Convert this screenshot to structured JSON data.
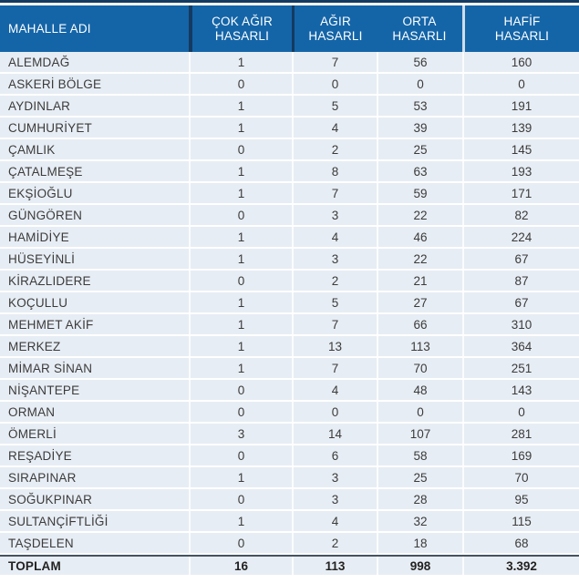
{
  "table": {
    "header": [
      {
        "line1": "MAHALLE ADI",
        "line2": ""
      },
      {
        "line1": "ÇOK AĞIR",
        "line2": "HASARLI"
      },
      {
        "line1": "AĞIR",
        "line2": "HASARLI"
      },
      {
        "line1": "ORTA",
        "line2": "HASARLI"
      },
      {
        "line1": "HAFİF",
        "line2": "HASARLI"
      }
    ],
    "rows": [
      {
        "name": "ALEMDAĞ",
        "values": [
          "1",
          "7",
          "56",
          "160"
        ]
      },
      {
        "name": "ASKERİ BÖLGE",
        "values": [
          "0",
          "0",
          "0",
          "0"
        ]
      },
      {
        "name": "AYDINLAR",
        "values": [
          "1",
          "5",
          "53",
          "191"
        ]
      },
      {
        "name": "CUMHURİYET",
        "values": [
          "1",
          "4",
          "39",
          "139"
        ]
      },
      {
        "name": "ÇAMLIK",
        "values": [
          "0",
          "2",
          "25",
          "145"
        ]
      },
      {
        "name": "ÇATALMEŞE",
        "values": [
          "1",
          "8",
          "63",
          "193"
        ]
      },
      {
        "name": "EKŞİOĞLU",
        "values": [
          "1",
          "7",
          "59",
          "171"
        ]
      },
      {
        "name": "GÜNGÖREN",
        "values": [
          "0",
          "3",
          "22",
          "82"
        ]
      },
      {
        "name": "HAMİDİYE",
        "values": [
          "1",
          "4",
          "46",
          "224"
        ]
      },
      {
        "name": "HÜSEYİNLİ",
        "values": [
          "1",
          "3",
          "22",
          "67"
        ]
      },
      {
        "name": "KİRAZLIDERE",
        "values": [
          "0",
          "2",
          "21",
          "87"
        ]
      },
      {
        "name": "KOÇULLU",
        "values": [
          "1",
          "5",
          "27",
          "67"
        ]
      },
      {
        "name": "MEHMET AKİF",
        "values": [
          "1",
          "7",
          "66",
          "310"
        ]
      },
      {
        "name": "MERKEZ",
        "values": [
          "1",
          "13",
          "113",
          "364"
        ]
      },
      {
        "name": "MİMAR SİNAN",
        "values": [
          "1",
          "7",
          "70",
          "251"
        ]
      },
      {
        "name": "NİŞANTEPE",
        "values": [
          "0",
          "4",
          "48",
          "143"
        ]
      },
      {
        "name": "ORMAN",
        "values": [
          "0",
          "0",
          "0",
          "0"
        ]
      },
      {
        "name": "ÖMERLİ",
        "values": [
          "3",
          "14",
          "107",
          "281"
        ]
      },
      {
        "name": "REŞADİYE",
        "values": [
          "0",
          "6",
          "58",
          "169"
        ]
      },
      {
        "name": "SIRAPINAR",
        "values": [
          "1",
          "3",
          "25",
          "70"
        ]
      },
      {
        "name": "SOĞUKPINAR",
        "values": [
          "0",
          "3",
          "28",
          "95"
        ]
      },
      {
        "name": "SULTANÇİFTLİĞİ",
        "values": [
          "1",
          "4",
          "32",
          "115"
        ]
      },
      {
        "name": "TAŞDELEN",
        "values": [
          "0",
          "2",
          "18",
          "68"
        ]
      }
    ],
    "total": {
      "name": "TOPLAM",
      "values": [
        "16",
        "113",
        "998",
        "3.392"
      ]
    }
  },
  "colors": {
    "header_bg": "#1465a8",
    "header_text": "#ffffff",
    "divider_dark": "#143a60",
    "divider_pale": "#cfdde9",
    "row_bg": "#e7edf4",
    "row_separator": "#ffffff",
    "row_text": "#3b3b3b",
    "total_border": "#46525e"
  },
  "chart_data": {
    "type": "table",
    "title": "",
    "columns": [
      "MAHALLE ADI",
      "ÇOK AĞIR HASARLI",
      "AĞIR HASARLI",
      "ORTA HASARLI",
      "HAFİF HASARLI"
    ],
    "categories": [
      "ALEMDAĞ",
      "ASKERİ BÖLGE",
      "AYDINLAR",
      "CUMHURİYET",
      "ÇAMLIK",
      "ÇATALMEŞE",
      "EKŞİOĞLU",
      "GÜNGÖREN",
      "HAMİDİYE",
      "HÜSEYİNLİ",
      "KİRAZLIDERE",
      "KOÇULLU",
      "MEHMET AKİF",
      "MERKEZ",
      "MİMAR SİNAN",
      "NİŞANTEPE",
      "ORMAN",
      "ÖMERLİ",
      "REŞADİYE",
      "SIRAPINAR",
      "SOĞUKPINAR",
      "SULTANÇİFTLİĞİ",
      "TAŞDELEN"
    ],
    "series": [
      {
        "name": "ÇOK AĞIR HASARLI",
        "values": [
          1,
          0,
          1,
          1,
          0,
          1,
          1,
          0,
          1,
          1,
          0,
          1,
          1,
          1,
          1,
          0,
          0,
          3,
          0,
          1,
          0,
          1,
          0
        ]
      },
      {
        "name": "AĞIR HASARLI",
        "values": [
          7,
          0,
          5,
          4,
          2,
          8,
          7,
          3,
          4,
          3,
          2,
          5,
          7,
          13,
          7,
          4,
          0,
          14,
          6,
          3,
          3,
          4,
          2
        ]
      },
      {
        "name": "ORTA HASARLI",
        "values": [
          56,
          0,
          53,
          39,
          25,
          63,
          59,
          22,
          46,
          22,
          21,
          27,
          66,
          113,
          70,
          48,
          0,
          107,
          58,
          25,
          28,
          32,
          18
        ]
      },
      {
        "name": "HAFİF HASARLI",
        "values": [
          160,
          0,
          191,
          139,
          145,
          193,
          171,
          82,
          224,
          67,
          87,
          67,
          310,
          364,
          251,
          143,
          0,
          281,
          169,
          70,
          95,
          115,
          68
        ]
      }
    ],
    "totals": {
      "label": "TOPLAM",
      "values": [
        16,
        113,
        998,
        3392
      ],
      "display": [
        "16",
        "113",
        "998",
        "3.392"
      ]
    }
  }
}
